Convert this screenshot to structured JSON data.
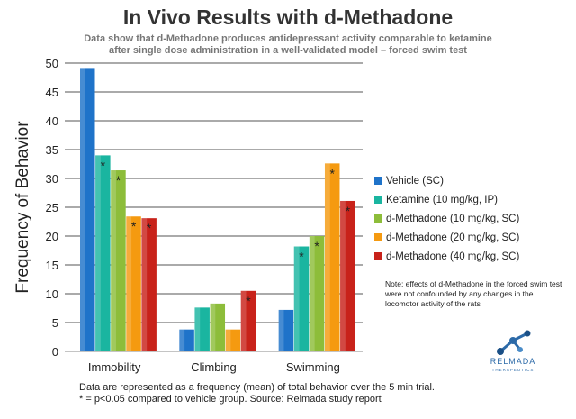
{
  "title": "In Vivo Results with d-Methadone",
  "subtitle_line1": "Data show that d-Methadone produces antidepressant activity comparable to ketamine",
  "subtitle_line2": "after single dose administration in a well-validated model – forced swim test",
  "note": "Note: effects of d-Methadone in the forced swim test were not confounded by any changes in the locomotor activity of the rats",
  "footer_line1": "Data are represented as a frequency (mean) of total behavior over the 5 min trial.",
  "footer_line2": "* = p<0.05 compared to vehicle group. Source: Relmada study report",
  "logo": {
    "wordmark": "RELMADA",
    "tagline": "THERAPEUTICS"
  },
  "chart_data": {
    "type": "bar",
    "ylabel": "Frequency of Behavior",
    "xlabel": "",
    "ylim": [
      0,
      50
    ],
    "yticks": [
      0,
      5,
      10,
      15,
      20,
      25,
      30,
      35,
      40,
      45,
      50
    ],
    "grid": true,
    "legend_position": "right",
    "categories": [
      "Immobility",
      "Climbing",
      "Swimming"
    ],
    "series": [
      {
        "name": "Vehicle (SC)",
        "color": "#1f73c9",
        "values": [
          49,
          3.8,
          7.2
        ],
        "significant": [
          false,
          false,
          false
        ]
      },
      {
        "name": "Ketamine (10 mg/kg, IP)",
        "color": "#1ab5a0",
        "values": [
          34,
          7.6,
          18.2
        ],
        "significant": [
          true,
          false,
          true
        ]
      },
      {
        "name": "d-Methadone (10 mg/kg, SC)",
        "color": "#8dbd3a",
        "values": [
          31.4,
          8.3,
          20
        ],
        "significant": [
          true,
          false,
          true
        ]
      },
      {
        "name": "d-Methadone (20 mg/kg, SC)",
        "color": "#f59a10",
        "values": [
          23.4,
          3.8,
          32.6
        ],
        "significant": [
          true,
          false,
          true
        ]
      },
      {
        "name": "d-Methadone (40 mg/kg, SC)",
        "color": "#c8221a",
        "values": [
          23.1,
          10.5,
          26.1
        ],
        "significant": [
          true,
          true,
          true
        ]
      }
    ],
    "significance_marker": "*"
  }
}
